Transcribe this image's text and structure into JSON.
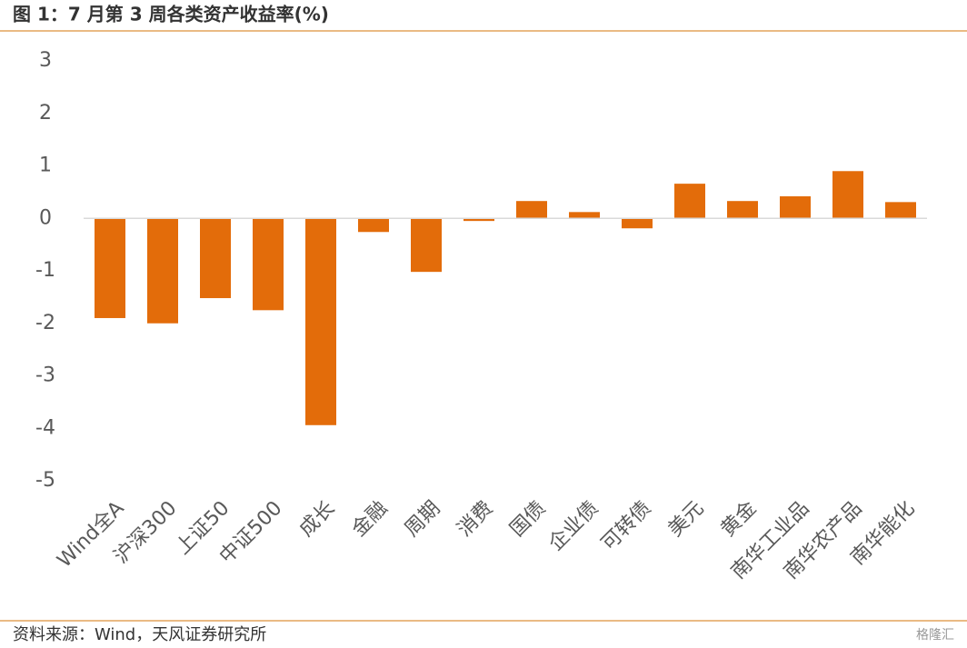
{
  "chart_data": {
    "type": "bar",
    "title": "图 1：7 月第 3 周各类资产收益率(%)",
    "source": "资料来源：Wind，天风证券研究所",
    "watermark": "格隆汇",
    "categories": [
      "Wind全A",
      "沪深300",
      "上证50",
      "中证500",
      "成长",
      "金融",
      "周期",
      "消费",
      "国债",
      "企业债",
      "可转债",
      "美元",
      "黄金",
      "南华工业品",
      "南华农产品",
      "南华能化"
    ],
    "values": [
      -1.9,
      -2.0,
      -1.52,
      -1.75,
      -3.94,
      -0.26,
      -1.02,
      -0.05,
      0.33,
      0.12,
      -0.19,
      0.66,
      0.33,
      0.42,
      0.9,
      0.31
    ],
    "color": "#e36c0a",
    "ylim": [
      -5,
      3
    ],
    "yticks": [
      -5,
      -4,
      -3,
      -2,
      -1,
      0,
      1,
      2,
      3
    ],
    "grid": false
  }
}
